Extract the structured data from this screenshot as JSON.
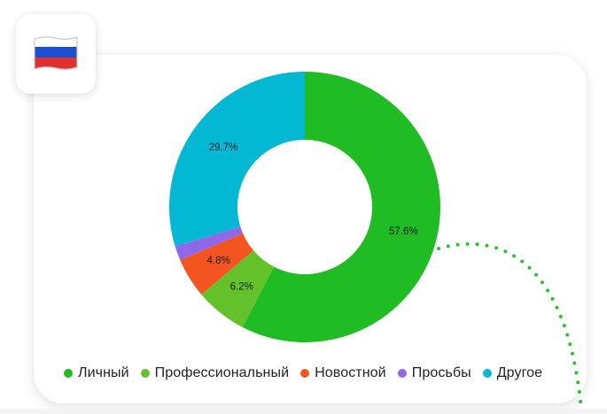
{
  "flag": {
    "icon": "russia-flag-icon",
    "colors": [
      "#ffffff",
      "#1c4fd1",
      "#e0312b"
    ]
  },
  "chart_data": {
    "type": "pie",
    "style": "donut",
    "start_angle_deg": 0,
    "categories": [
      "Личный",
      "Профессиональный",
      "Новостной",
      "Просьбы",
      "Другое"
    ],
    "values": [
      57.6,
      6.2,
      4.8,
      1.7,
      29.7
    ],
    "labels": [
      "57.6%",
      "6.2%",
      "4.8%",
      "",
      "29.7%"
    ],
    "colors": [
      "#1fbd23",
      "#63c22a",
      "#f45520",
      "#8f68ea",
      "#02b8d3"
    ],
    "legend_position": "bottom"
  }
}
